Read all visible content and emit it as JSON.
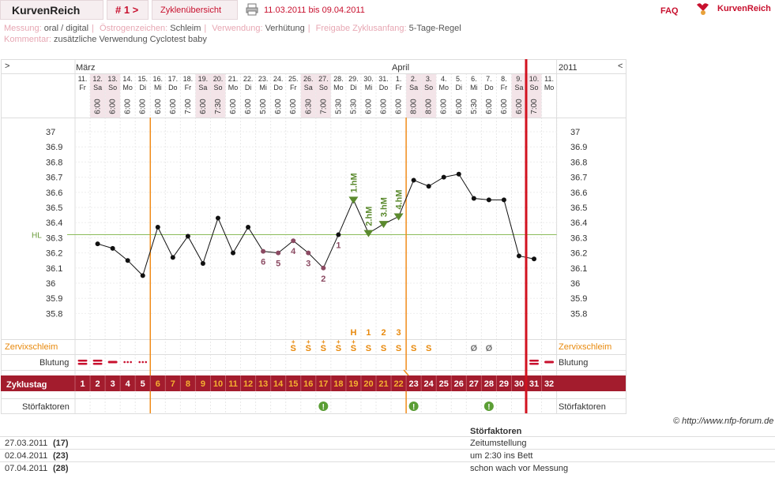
{
  "header": {
    "brand": "KurvenReich",
    "cycle_label": "# 1 >",
    "overview_label": "Zyklenübersicht",
    "date_range": "11.03.2011 bis 09.04.2011",
    "faq": "FAQ",
    "logo_text": "KurvenReich",
    "print_icon": "printer-icon"
  },
  "meta": {
    "messung_key": "Messung:",
    "messung_val": "oral / digital",
    "oestrogen_key": "Östrogenzeichen:",
    "oestrogen_val": "Schleim",
    "verwendung_key": "Verwendung:",
    "verwendung_val": "Verhütung",
    "freigabe_key": "Freigabe Zyklusanfang:",
    "freigabe_val": "5-Tage-Regel",
    "kommentar_key": "Kommentar:",
    "kommentar_val": "zusätzliche Verwendung Cyclotest baby"
  },
  "chart_data": {
    "type": "line",
    "nav_left": ">",
    "nav_right": "<",
    "year": "2011",
    "months": [
      {
        "label": "März",
        "day_index": 0
      },
      {
        "label": "April",
        "day_index": 21
      }
    ],
    "days": [
      {
        "d": "11.",
        "w": "Fr",
        "t": "",
        "we": false
      },
      {
        "d": "12.",
        "w": "Sa",
        "t": "6:00",
        "we": true
      },
      {
        "d": "13.",
        "w": "So",
        "t": "6:00",
        "we": true
      },
      {
        "d": "14.",
        "w": "Mo",
        "t": "6:00",
        "we": false
      },
      {
        "d": "15.",
        "w": "Di",
        "t": "6:00",
        "we": false
      },
      {
        "d": "16.",
        "w": "Mi",
        "t": "6:00",
        "we": false
      },
      {
        "d": "17.",
        "w": "Do",
        "t": "6:00",
        "we": false
      },
      {
        "d": "18.",
        "w": "Fr",
        "t": "7:00",
        "we": false
      },
      {
        "d": "19.",
        "w": "Sa",
        "t": "6:00",
        "we": true
      },
      {
        "d": "20.",
        "w": "So",
        "t": "7:30",
        "we": true
      },
      {
        "d": "21.",
        "w": "Mo",
        "t": "6:00",
        "we": false
      },
      {
        "d": "22.",
        "w": "Di",
        "t": "6:00",
        "we": false
      },
      {
        "d": "23.",
        "w": "Mi",
        "t": "5:00",
        "we": false
      },
      {
        "d": "24.",
        "w": "Do",
        "t": "6:00",
        "we": false
      },
      {
        "d": "25.",
        "w": "Fr",
        "t": "6:00",
        "we": false
      },
      {
        "d": "26.",
        "w": "Sa",
        "t": "6:30",
        "we": true
      },
      {
        "d": "27.",
        "w": "So",
        "t": "7:00",
        "we": true
      },
      {
        "d": "28.",
        "w": "Mo",
        "t": "5:30",
        "we": false
      },
      {
        "d": "29.",
        "w": "Di",
        "t": "5:30",
        "we": false
      },
      {
        "d": "30.",
        "w": "Mi",
        "t": "6:00",
        "we": false
      },
      {
        "d": "31.",
        "w": "Do",
        "t": "6:00",
        "we": false
      },
      {
        "d": "1.",
        "w": "Fr",
        "t": "6:00",
        "we": false
      },
      {
        "d": "2.",
        "w": "Sa",
        "t": "8:00",
        "we": true
      },
      {
        "d": "3.",
        "w": "So",
        "t": "8:00",
        "we": true
      },
      {
        "d": "4.",
        "w": "Mo",
        "t": "6:00",
        "we": false
      },
      {
        "d": "5.",
        "w": "Di",
        "t": "6:00",
        "we": false
      },
      {
        "d": "6.",
        "w": "Mi",
        "t": "5:30",
        "we": false
      },
      {
        "d": "7.",
        "w": "Do",
        "t": "6:00",
        "we": false
      },
      {
        "d": "8.",
        "w": "Fr",
        "t": "6:00",
        "we": false
      },
      {
        "d": "9.",
        "w": "Sa",
        "t": "6:00",
        "we": true
      },
      {
        "d": "10.",
        "w": "So",
        "t": "7:00",
        "we": true
      },
      {
        "d": "11.",
        "w": "Mo",
        "t": "",
        "we": false
      }
    ],
    "y_ticks": [
      "37",
      "36.9",
      "36.8",
      "36.7",
      "36.6",
      "36.5",
      "36.4",
      "36.3",
      "36.2",
      "36.1",
      "36",
      "35.9",
      "35.8"
    ],
    "ylim": [
      35.8,
      37.0
    ],
    "hl_label": "HL",
    "hl_value": 36.32,
    "temps": [
      null,
      36.26,
      36.23,
      36.15,
      36.05,
      36.37,
      36.17,
      36.31,
      36.13,
      36.43,
      36.2,
      36.37,
      36.21,
      36.2,
      36.28,
      36.2,
      36.1,
      36.32,
      36.55,
      36.33,
      36.39,
      36.44,
      36.68,
      36.64,
      36.7,
      36.72,
      36.56,
      36.55,
      36.55,
      36.18,
      36.16,
      null
    ],
    "excluded_days": [
      12,
      13,
      14,
      15,
      16
    ],
    "low_labels": [
      {
        "day": 17,
        "text": "1"
      },
      {
        "day": 16,
        "text": "2"
      },
      {
        "day": 15,
        "text": "3"
      },
      {
        "day": 14,
        "text": "4"
      },
      {
        "day": 13,
        "text": "5"
      },
      {
        "day": 12,
        "text": "6"
      }
    ],
    "high_markers": [
      {
        "day": 18,
        "text": "1.hM"
      },
      {
        "day": 19,
        "text": "2.hM"
      },
      {
        "day": 20,
        "text": "3.hM"
      },
      {
        "day": 21,
        "text": "4.hM"
      }
    ],
    "peak_labels": [
      {
        "day": 18,
        "text": "H"
      },
      {
        "day": 19,
        "text": "1"
      },
      {
        "day": 20,
        "text": "2"
      },
      {
        "day": 21,
        "text": "3"
      }
    ],
    "cervix_label": "Zervixschleim",
    "cervix": [
      {
        "day": 14,
        "text": "S",
        "plus": true
      },
      {
        "day": 15,
        "text": "S",
        "plus": true
      },
      {
        "day": 16,
        "text": "S",
        "plus": true
      },
      {
        "day": 17,
        "text": "S",
        "plus": true
      },
      {
        "day": 18,
        "text": "S",
        "plus": true
      },
      {
        "day": 19,
        "text": "S",
        "plus": false
      },
      {
        "day": 20,
        "text": "S",
        "plus": false
      },
      {
        "day": 21,
        "text": "S",
        "plus": false
      },
      {
        "day": 22,
        "text": "S",
        "plus": false
      },
      {
        "day": 23,
        "text": "S",
        "plus": false
      },
      {
        "day": 26,
        "text": "Ø",
        "plus": false
      },
      {
        "day": 27,
        "text": "Ø",
        "plus": false
      }
    ],
    "bleeding_label": "Blutung",
    "bleeding": [
      {
        "day": 0,
        "kind": "heavy"
      },
      {
        "day": 1,
        "kind": "heavy"
      },
      {
        "day": 2,
        "kind": "medium"
      },
      {
        "day": 3,
        "kind": "light"
      },
      {
        "day": 4,
        "kind": "light"
      },
      {
        "day": 30,
        "kind": "heavy"
      },
      {
        "day": 31,
        "kind": "medium"
      }
    ],
    "cycle_label": "Zyklustag",
    "cycle_days": [
      "1",
      "2",
      "3",
      "4",
      "5",
      "6",
      "7",
      "8",
      "9",
      "10",
      "11",
      "12",
      "13",
      "14",
      "15",
      "16",
      "17",
      "18",
      "19",
      "20",
      "21",
      "22",
      "23",
      "24",
      "25",
      "26",
      "27",
      "28",
      "29",
      "30",
      "31",
      "32"
    ],
    "stor_label": "Störfaktoren",
    "stor_days": [
      16,
      22,
      27
    ],
    "fertile_start_day": 5,
    "infertile_start_day": 22,
    "today_day": 29
  },
  "footer": {
    "credit": "© http://www.nfp-forum.de",
    "stor_header": "Störfaktoren",
    "rows": [
      {
        "date": "27.03.2011",
        "num": "(17)",
        "text": "Zeitumstellung"
      },
      {
        "date": "02.04.2011",
        "num": "(23)",
        "text": "um 2:30 ins Bett"
      },
      {
        "date": "07.04.2011",
        "num": "(28)",
        "text": "schon wach vor Messung"
      }
    ]
  }
}
